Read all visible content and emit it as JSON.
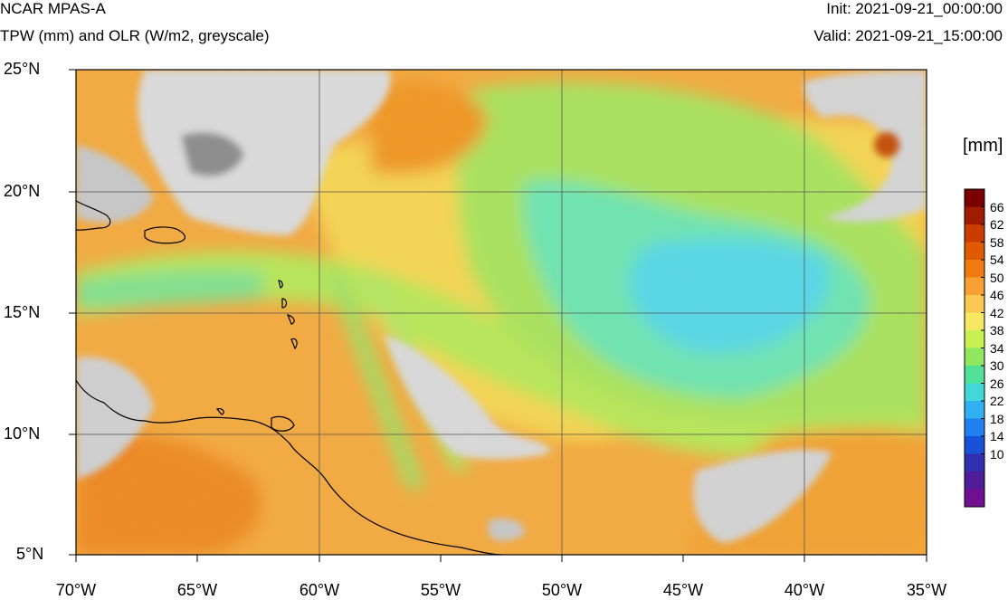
{
  "header": {
    "model": "NCAR MPAS-A",
    "fields": "TPW (mm) and OLR (W/m2, greyscale)",
    "init": "Init: 2021-09-21_00:00:00",
    "valid": "Valid: 2021-09-21_15:00:00"
  },
  "map": {
    "lat_labels": [
      "25°N",
      "20°N",
      "15°N",
      "10°N",
      "5°N"
    ],
    "lon_labels": [
      "70°W",
      "65°W",
      "60°W",
      "55°W",
      "50°W",
      "45°W",
      "40°W",
      "35°W"
    ],
    "lat_range": [
      5,
      25
    ],
    "lon_range": [
      -70,
      -35
    ]
  },
  "colorbar": {
    "unit": "[mm]",
    "levels": [
      "66",
      "62",
      "58",
      "54",
      "50",
      "46",
      "42",
      "38",
      "34",
      "30",
      "26",
      "22",
      "18",
      "14",
      "10"
    ],
    "colors": [
      "#7a0000",
      "#a01c00",
      "#c83c00",
      "#e05a00",
      "#f07a10",
      "#f5a030",
      "#f8c850",
      "#f5e860",
      "#c8f050",
      "#90e860",
      "#50e098",
      "#40d8d8",
      "#30b0f0",
      "#2080f0",
      "#1850d8",
      "#3030b0",
      "#501c98",
      "#701090"
    ]
  }
}
